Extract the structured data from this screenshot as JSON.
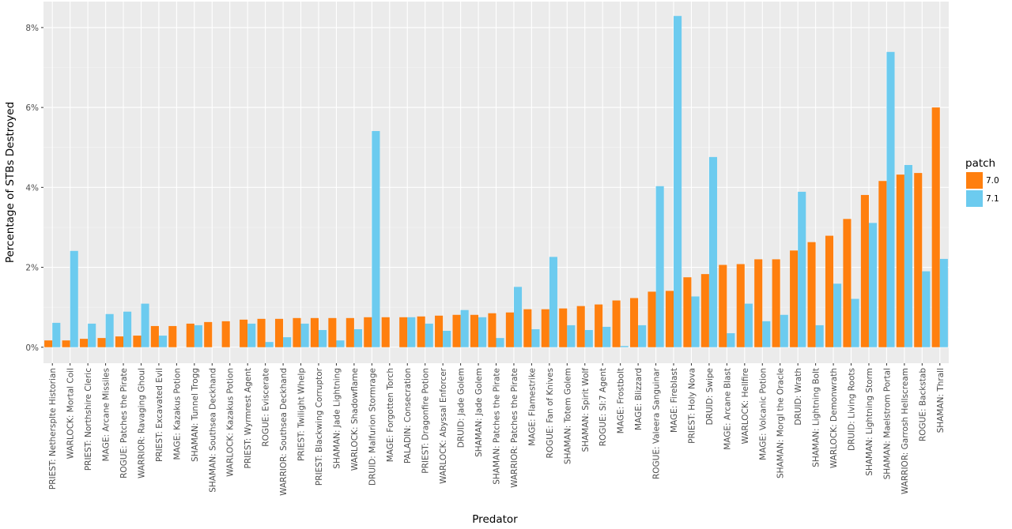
{
  "chart_data": {
    "type": "bar",
    "xlabel": "Predator",
    "ylabel": "Percentage of STBs Destroyed",
    "ylim": [
      -0.004,
      0.0865
    ],
    "yticks": [
      0,
      0.02,
      0.04,
      0.06,
      0.08
    ],
    "ytick_labels": [
      "0%",
      "2%",
      "4%",
      "6%",
      "8%"
    ],
    "grid": true,
    "legend_position": "right",
    "legend_title": "patch",
    "categories": [
      "PRIEST: Nethersplte Historian",
      "WARLOCK: Mortal Coil",
      "PRIEST: Northshire Cleric",
      "MAGE: Arcane Missiles",
      "ROGUE: Patches the Pirate",
      "WARRIOR: Ravaging Ghoul",
      "PRIEST: Excavated Evil",
      "MAGE: Kazakus Potion",
      "SHAMAN: Tunnel Trogg",
      "SHAMAN: Southsea Deckhand",
      "WARLOCK: Kazakus Potion",
      "PRIEST: Wyrmrest Agent",
      "ROGUE: Eviscerate",
      "WARRIOR: Southsea Deckhand",
      "PRIEST: Twilight Whelp",
      "PRIEST: Blackwing Corruptor",
      "SHAMAN: Jade Lightning",
      "WARLOCK: Shadowflame",
      "DRUID: Malfurion Stormrage",
      "MAGE: Forgotten Torch",
      "PALADIN: Consecration",
      "PRIEST: Dragonfire Potion",
      "WARLOCK: Abyssal Enforcer",
      "DRUID: Jade Golem",
      "SHAMAN: Jade Golem",
      "SHAMAN: Patches the Pirate",
      "WARRIOR: Patches the Pirate",
      "MAGE: Flamestrike",
      "ROGUE: Fan of Knives",
      "SHAMAN: Totem Golem",
      "SHAMAN: Spirit Wolf",
      "ROGUE: SI:7 Agent",
      "MAGE: Frostbolt",
      "MAGE: Blizzard",
      "ROGUE: Valeera Sanguinar",
      "MAGE: Fireblast",
      "PRIEST: Holy Nova",
      "DRUID: Swipe",
      "MAGE: Arcane Blast",
      "WARLOCK: Hellfire",
      "MAGE: Volcanic Potion",
      "SHAMAN: Morgl the Oracle",
      "DRUID: Wrath",
      "SHAMAN: Lightning Bolt",
      "WARLOCK: Demonwrath",
      "DRUID: Living Roots",
      "SHAMAN: Lightning Storm",
      "SHAMAN: Maelstrom Portal",
      "WARRIOR: Garrosh Hellscream",
      "ROGUE: Backstab",
      "SHAMAN: Thrall"
    ],
    "series": [
      {
        "name": "7.0",
        "color": "#ff7f0e",
        "values": [
          0.0017,
          0.0017,
          0.0021,
          0.0023,
          0.0027,
          0.0029,
          0.0053,
          0.0053,
          0.0059,
          0.0063,
          0.0065,
          0.0069,
          0.0071,
          0.0071,
          0.0073,
          0.0073,
          0.0073,
          0.0073,
          0.0075,
          0.0075,
          0.0075,
          0.0077,
          0.0079,
          0.0081,
          0.0081,
          0.0085,
          0.0087,
          0.0095,
          0.0095,
          0.0097,
          0.0103,
          0.0107,
          0.0117,
          0.0123,
          0.0139,
          0.0141,
          0.0175,
          0.0183,
          0.0206,
          0.0208,
          0.022,
          0.022,
          0.0242,
          0.0263,
          0.0279,
          0.0321,
          0.0381,
          0.0416,
          0.0432,
          0.0436,
          0.06
        ]
      },
      {
        "name": "7.1",
        "color": "#6ccbef",
        "values": [
          0.0061,
          0.0241,
          0.0059,
          0.0083,
          0.0089,
          0.0109,
          0.0029,
          0.0,
          0.0055,
          0.0,
          0.0,
          0.0059,
          0.0013,
          0.0025,
          0.0059,
          0.0043,
          0.0017,
          0.0045,
          0.0541,
          0.0,
          0.0075,
          0.0059,
          0.0041,
          0.0093,
          0.0075,
          0.0023,
          0.0151,
          0.0045,
          0.0226,
          0.0055,
          0.0043,
          0.0051,
          0.0003,
          0.0055,
          0.0403,
          0.0829,
          0.0127,
          0.0476,
          0.0035,
          0.0109,
          0.0065,
          0.0081,
          0.0389,
          0.0055,
          0.0159,
          0.0121,
          0.0311,
          0.0739,
          0.0456,
          0.019,
          0.0221
        ]
      }
    ]
  },
  "colors": {
    "panel_background": "#ebebeb",
    "grid_major": "#ffffff",
    "grid_minor": "#f5f5f5"
  }
}
